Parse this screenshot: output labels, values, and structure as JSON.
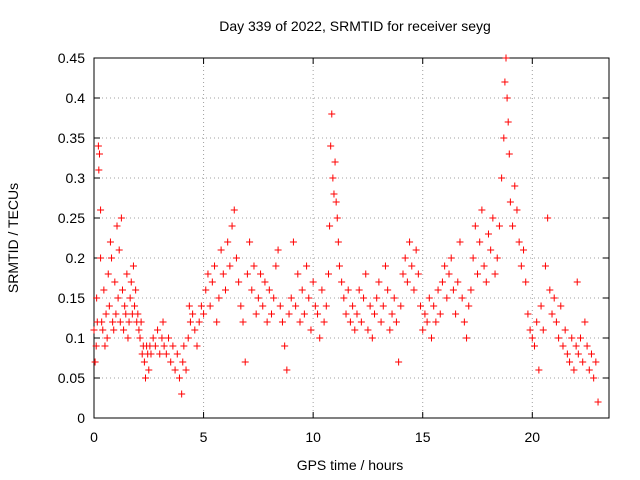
{
  "chart_data": {
    "type": "scatter",
    "title": "Day 339 of 2022, SRMTID for receiver seyg",
    "xlabel": "GPS time / hours",
    "ylabel": "SRMTID / TECUs",
    "xlim": [
      0,
      23.5
    ],
    "ylim": [
      0,
      0.45
    ],
    "x_ticks": [
      "0",
      "5",
      "10",
      "15",
      "20"
    ],
    "y_ticks": [
      "0",
      "0.05",
      "0.1",
      "0.15",
      "0.2",
      "0.25",
      "0.3",
      "0.35",
      "0.4",
      "0.45"
    ],
    "grid": true,
    "marker": "plus",
    "color": "#ff0000",
    "series": [
      {
        "name": "SRMTID",
        "points": [
          [
            0.0,
            0.11
          ],
          [
            0.05,
            0.07
          ],
          [
            0.1,
            0.09
          ],
          [
            0.12,
            0.15
          ],
          [
            0.15,
            0.12
          ],
          [
            0.2,
            0.34
          ],
          [
            0.22,
            0.31
          ],
          [
            0.25,
            0.33
          ],
          [
            0.3,
            0.26
          ],
          [
            0.3,
            0.2
          ],
          [
            0.35,
            0.12
          ],
          [
            0.4,
            0.11
          ],
          [
            0.45,
            0.16
          ],
          [
            0.5,
            0.09
          ],
          [
            0.55,
            0.13
          ],
          [
            0.6,
            0.1
          ],
          [
            0.65,
            0.18
          ],
          [
            0.7,
            0.14
          ],
          [
            0.75,
            0.22
          ],
          [
            0.8,
            0.2
          ],
          [
            0.85,
            0.12
          ],
          [
            0.9,
            0.11
          ],
          [
            0.95,
            0.17
          ],
          [
            1.0,
            0.13
          ],
          [
            1.05,
            0.24
          ],
          [
            1.1,
            0.15
          ],
          [
            1.15,
            0.21
          ],
          [
            1.2,
            0.12
          ],
          [
            1.25,
            0.25
          ],
          [
            1.3,
            0.16
          ],
          [
            1.35,
            0.11
          ],
          [
            1.4,
            0.14
          ],
          [
            1.45,
            0.13
          ],
          [
            1.5,
            0.18
          ],
          [
            1.55,
            0.1
          ],
          [
            1.6,
            0.12
          ],
          [
            1.65,
            0.15
          ],
          [
            1.7,
            0.17
          ],
          [
            1.75,
            0.13
          ],
          [
            1.8,
            0.19
          ],
          [
            1.85,
            0.14
          ],
          [
            1.9,
            0.16
          ],
          [
            1.95,
            0.12
          ],
          [
            2.0,
            0.13
          ],
          [
            2.05,
            0.11
          ],
          [
            2.1,
            0.1
          ],
          [
            2.15,
            0.12
          ],
          [
            2.2,
            0.08
          ],
          [
            2.25,
            0.09
          ],
          [
            2.3,
            0.07
          ],
          [
            2.35,
            0.05
          ],
          [
            2.4,
            0.09
          ],
          [
            2.45,
            0.08
          ],
          [
            2.5,
            0.06
          ],
          [
            2.55,
            0.09
          ],
          [
            2.6,
            0.08
          ],
          [
            2.7,
            0.1
          ],
          [
            2.8,
            0.09
          ],
          [
            2.9,
            0.11
          ],
          [
            3.0,
            0.08
          ],
          [
            3.1,
            0.1
          ],
          [
            3.15,
            0.12
          ],
          [
            3.2,
            0.09
          ],
          [
            3.3,
            0.08
          ],
          [
            3.4,
            0.1
          ],
          [
            3.5,
            0.07
          ],
          [
            3.6,
            0.09
          ],
          [
            3.7,
            0.06
          ],
          [
            3.8,
            0.08
          ],
          [
            3.9,
            0.05
          ],
          [
            4.0,
            0.03
          ],
          [
            4.05,
            0.07
          ],
          [
            4.1,
            0.09
          ],
          [
            4.2,
            0.06
          ],
          [
            4.3,
            0.1
          ],
          [
            4.35,
            0.14
          ],
          [
            4.4,
            0.12
          ],
          [
            4.5,
            0.13
          ],
          [
            4.6,
            0.11
          ],
          [
            4.7,
            0.09
          ],
          [
            4.8,
            0.12
          ],
          [
            4.9,
            0.14
          ],
          [
            5.0,
            0.13
          ],
          [
            5.1,
            0.16
          ],
          [
            5.2,
            0.18
          ],
          [
            5.3,
            0.14
          ],
          [
            5.4,
            0.17
          ],
          [
            5.5,
            0.19
          ],
          [
            5.6,
            0.12
          ],
          [
            5.7,
            0.15
          ],
          [
            5.8,
            0.21
          ],
          [
            5.9,
            0.18
          ],
          [
            6.0,
            0.16
          ],
          [
            6.1,
            0.22
          ],
          [
            6.2,
            0.19
          ],
          [
            6.3,
            0.24
          ],
          [
            6.4,
            0.26
          ],
          [
            6.5,
            0.2
          ],
          [
            6.6,
            0.17
          ],
          [
            6.7,
            0.14
          ],
          [
            6.8,
            0.12
          ],
          [
            6.9,
            0.07
          ],
          [
            7.0,
            0.18
          ],
          [
            7.1,
            0.22
          ],
          [
            7.2,
            0.16
          ],
          [
            7.3,
            0.19
          ],
          [
            7.4,
            0.13
          ],
          [
            7.5,
            0.15
          ],
          [
            7.6,
            0.18
          ],
          [
            7.7,
            0.14
          ],
          [
            7.8,
            0.17
          ],
          [
            7.9,
            0.12
          ],
          [
            8.0,
            0.16
          ],
          [
            8.1,
            0.13
          ],
          [
            8.2,
            0.15
          ],
          [
            8.3,
            0.19
          ],
          [
            8.4,
            0.21
          ],
          [
            8.5,
            0.14
          ],
          [
            8.6,
            0.12
          ],
          [
            8.7,
            0.09
          ],
          [
            8.8,
            0.06
          ],
          [
            8.9,
            0.13
          ],
          [
            9.0,
            0.15
          ],
          [
            9.1,
            0.22
          ],
          [
            9.2,
            0.14
          ],
          [
            9.3,
            0.18
          ],
          [
            9.4,
            0.12
          ],
          [
            9.5,
            0.16
          ],
          [
            9.6,
            0.13
          ],
          [
            9.7,
            0.19
          ],
          [
            9.8,
            0.15
          ],
          [
            9.9,
            0.11
          ],
          [
            10.0,
            0.17
          ],
          [
            10.1,
            0.14
          ],
          [
            10.2,
            0.13
          ],
          [
            10.3,
            0.1
          ],
          [
            10.4,
            0.16
          ],
          [
            10.5,
            0.12
          ],
          [
            10.6,
            0.14
          ],
          [
            10.7,
            0.18
          ],
          [
            10.75,
            0.24
          ],
          [
            10.8,
            0.34
          ],
          [
            10.85,
            0.38
          ],
          [
            10.9,
            0.3
          ],
          [
            10.95,
            0.28
          ],
          [
            11.0,
            0.32
          ],
          [
            11.05,
            0.27
          ],
          [
            11.1,
            0.25
          ],
          [
            11.15,
            0.22
          ],
          [
            11.2,
            0.19
          ],
          [
            11.3,
            0.17
          ],
          [
            11.4,
            0.15
          ],
          [
            11.5,
            0.13
          ],
          [
            11.6,
            0.16
          ],
          [
            11.7,
            0.12
          ],
          [
            11.8,
            0.14
          ],
          [
            11.9,
            0.11
          ],
          [
            12.0,
            0.13
          ],
          [
            12.1,
            0.16
          ],
          [
            12.2,
            0.12
          ],
          [
            12.3,
            0.15
          ],
          [
            12.4,
            0.18
          ],
          [
            12.5,
            0.11
          ],
          [
            12.6,
            0.14
          ],
          [
            12.7,
            0.1
          ],
          [
            12.8,
            0.13
          ],
          [
            12.9,
            0.15
          ],
          [
            13.0,
            0.17
          ],
          [
            13.1,
            0.12
          ],
          [
            13.2,
            0.14
          ],
          [
            13.3,
            0.19
          ],
          [
            13.4,
            0.16
          ],
          [
            13.5,
            0.11
          ],
          [
            13.6,
            0.13
          ],
          [
            13.7,
            0.15
          ],
          [
            13.8,
            0.12
          ],
          [
            13.9,
            0.07
          ],
          [
            14.0,
            0.14
          ],
          [
            14.1,
            0.18
          ],
          [
            14.2,
            0.2
          ],
          [
            14.3,
            0.17
          ],
          [
            14.4,
            0.22
          ],
          [
            14.5,
            0.19
          ],
          [
            14.6,
            0.16
          ],
          [
            14.7,
            0.21
          ],
          [
            14.8,
            0.18
          ],
          [
            14.9,
            0.14
          ],
          [
            15.0,
            0.11
          ],
          [
            15.1,
            0.13
          ],
          [
            15.2,
            0.12
          ],
          [
            15.3,
            0.15
          ],
          [
            15.4,
            0.1
          ],
          [
            15.5,
            0.14
          ],
          [
            15.6,
            0.12
          ],
          [
            15.7,
            0.16
          ],
          [
            15.8,
            0.13
          ],
          [
            15.9,
            0.17
          ],
          [
            16.0,
            0.19
          ],
          [
            16.1,
            0.15
          ],
          [
            16.2,
            0.18
          ],
          [
            16.3,
            0.2
          ],
          [
            16.4,
            0.16
          ],
          [
            16.5,
            0.13
          ],
          [
            16.6,
            0.17
          ],
          [
            16.7,
            0.22
          ],
          [
            16.8,
            0.15
          ],
          [
            16.9,
            0.12
          ],
          [
            17.0,
            0.1
          ],
          [
            17.1,
            0.14
          ],
          [
            17.2,
            0.16
          ],
          [
            17.3,
            0.2
          ],
          [
            17.4,
            0.24
          ],
          [
            17.5,
            0.18
          ],
          [
            17.6,
            0.22
          ],
          [
            17.7,
            0.26
          ],
          [
            17.8,
            0.19
          ],
          [
            17.9,
            0.17
          ],
          [
            18.0,
            0.23
          ],
          [
            18.1,
            0.21
          ],
          [
            18.2,
            0.25
          ],
          [
            18.3,
            0.18
          ],
          [
            18.4,
            0.2
          ],
          [
            18.5,
            0.24
          ],
          [
            18.6,
            0.3
          ],
          [
            18.7,
            0.35
          ],
          [
            18.75,
            0.42
          ],
          [
            18.8,
            0.45
          ],
          [
            18.85,
            0.4
          ],
          [
            18.9,
            0.37
          ],
          [
            18.95,
            0.33
          ],
          [
            19.0,
            0.27
          ],
          [
            19.1,
            0.24
          ],
          [
            19.2,
            0.29
          ],
          [
            19.3,
            0.26
          ],
          [
            19.4,
            0.22
          ],
          [
            19.5,
            0.19
          ],
          [
            19.6,
            0.21
          ],
          [
            19.7,
            0.17
          ],
          [
            19.8,
            0.13
          ],
          [
            19.9,
            0.11
          ],
          [
            20.0,
            0.1
          ],
          [
            20.1,
            0.09
          ],
          [
            20.2,
            0.12
          ],
          [
            20.3,
            0.06
          ],
          [
            20.4,
            0.14
          ],
          [
            20.5,
            0.11
          ],
          [
            20.6,
            0.19
          ],
          [
            20.7,
            0.25
          ],
          [
            20.8,
            0.16
          ],
          [
            20.9,
            0.13
          ],
          [
            21.0,
            0.15
          ],
          [
            21.1,
            0.12
          ],
          [
            21.2,
            0.1
          ],
          [
            21.3,
            0.14
          ],
          [
            21.4,
            0.09
          ],
          [
            21.5,
            0.11
          ],
          [
            21.6,
            0.08
          ],
          [
            21.7,
            0.07
          ],
          [
            21.8,
            0.1
          ],
          [
            21.9,
            0.06
          ],
          [
            22.0,
            0.09
          ],
          [
            22.05,
            0.17
          ],
          [
            22.1,
            0.08
          ],
          [
            22.2,
            0.1
          ],
          [
            22.3,
            0.07
          ],
          [
            22.4,
            0.12
          ],
          [
            22.5,
            0.09
          ],
          [
            22.6,
            0.06
          ],
          [
            22.7,
            0.08
          ],
          [
            22.8,
            0.05
          ],
          [
            22.9,
            0.07
          ],
          [
            23.0,
            0.02
          ]
        ]
      }
    ]
  }
}
